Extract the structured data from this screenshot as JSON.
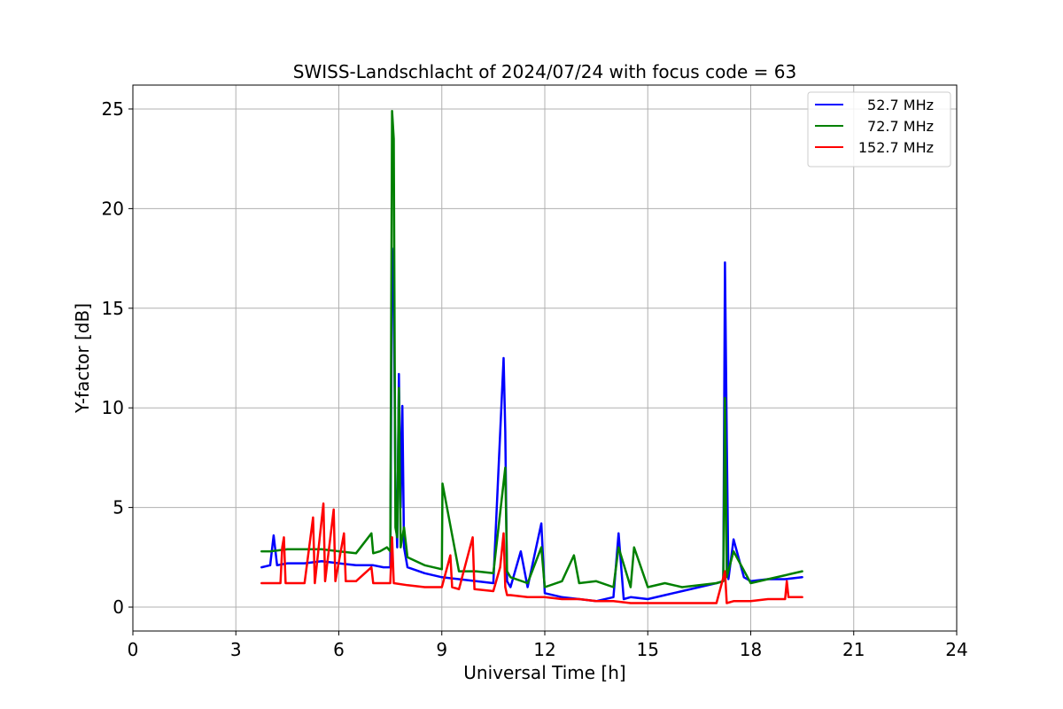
{
  "chart_data": {
    "type": "line",
    "title": "SWISS-Landschlacht of 2024/07/24 with focus code = 63",
    "xlabel": "Universal Time [h]",
    "ylabel": "Y-factor [dB]",
    "xlim": [
      0,
      24
    ],
    "ylim": [
      -1.2,
      26.2
    ],
    "xticks": [
      0,
      3,
      6,
      9,
      12,
      15,
      18,
      21,
      24
    ],
    "yticks": [
      0,
      5,
      10,
      15,
      20,
      25
    ],
    "grid": true,
    "legend_position": "top-right",
    "series": [
      {
        "name": "52.7 MHz",
        "color": "#0000ff",
        "x": [
          3.75,
          4.0,
          4.1,
          4.2,
          4.5,
          5.0,
          5.5,
          6.0,
          6.5,
          7.0,
          7.3,
          7.5,
          7.55,
          7.6,
          7.65,
          7.7,
          7.75,
          7.8,
          7.85,
          7.9,
          8.0,
          8.5,
          9.0,
          9.5,
          10.0,
          10.5,
          10.8,
          10.85,
          10.9,
          11.0,
          11.3,
          11.5,
          11.9,
          12.0,
          12.5,
          13.0,
          13.5,
          14.0,
          14.15,
          14.3,
          14.5,
          15.0,
          15.5,
          16.0,
          16.5,
          17.0,
          17.2,
          17.25,
          17.3,
          17.35,
          17.5,
          17.8,
          18.0,
          18.5,
          19.0,
          19.5
        ],
        "y": [
          2.0,
          2.1,
          3.6,
          2.1,
          2.2,
          2.2,
          2.3,
          2.2,
          2.1,
          2.1,
          2.0,
          2.0,
          18.0,
          16.2,
          6.0,
          3.0,
          11.7,
          5.0,
          10.1,
          3.0,
          2.0,
          1.7,
          1.5,
          1.4,
          1.3,
          1.2,
          12.5,
          8.8,
          1.3,
          1.0,
          2.8,
          1.0,
          4.2,
          0.7,
          0.5,
          0.4,
          0.3,
          0.5,
          3.7,
          0.4,
          0.5,
          0.4,
          0.6,
          0.8,
          1.0,
          1.2,
          1.3,
          17.3,
          8.5,
          1.4,
          3.4,
          1.5,
          1.3,
          1.4,
          1.4,
          1.5
        ]
      },
      {
        "name": "72.7 MHz",
        "color": "#008000",
        "x": [
          3.75,
          4.0,
          4.5,
          5.0,
          5.5,
          6.0,
          6.5,
          6.95,
          7.0,
          7.2,
          7.4,
          7.5,
          7.55,
          7.6,
          7.65,
          7.7,
          7.75,
          7.8,
          7.9,
          8.0,
          8.5,
          9.0,
          9.02,
          9.5,
          10.0,
          10.5,
          10.85,
          10.9,
          11.0,
          11.5,
          11.9,
          12.0,
          12.5,
          12.85,
          13.0,
          13.5,
          14.0,
          14.15,
          14.5,
          14.6,
          15.0,
          15.5,
          16.0,
          16.5,
          17.0,
          17.2,
          17.25,
          17.3,
          17.5,
          18.0,
          18.5,
          19.0,
          19.5
        ],
        "y": [
          2.8,
          2.8,
          2.9,
          2.9,
          2.9,
          2.8,
          2.7,
          3.7,
          2.7,
          2.8,
          3.0,
          2.8,
          24.9,
          23.5,
          4.0,
          3.5,
          11.0,
          3.0,
          4.0,
          2.5,
          2.1,
          1.9,
          6.2,
          1.8,
          1.8,
          1.7,
          7.0,
          1.8,
          1.5,
          1.2,
          3.0,
          1.0,
          1.3,
          2.6,
          1.2,
          1.3,
          1.0,
          3.0,
          1.0,
          3.0,
          1.0,
          1.2,
          1.0,
          1.1,
          1.2,
          1.3,
          10.5,
          1.5,
          2.8,
          1.2,
          1.4,
          1.6,
          1.8
        ]
      },
      {
        "name": "152.7 MHz",
        "color": "#ff0000",
        "x": [
          3.75,
          4.0,
          4.3,
          4.35,
          4.4,
          4.45,
          4.6,
          5.0,
          5.25,
          5.3,
          5.55,
          5.6,
          5.85,
          5.9,
          6.15,
          6.2,
          6.5,
          6.95,
          7.0,
          7.5,
          7.55,
          7.6,
          8.0,
          8.5,
          9.0,
          9.25,
          9.3,
          9.5,
          9.9,
          9.95,
          10.5,
          10.7,
          10.8,
          10.85,
          10.9,
          11.0,
          11.5,
          12.0,
          12.5,
          13.0,
          13.5,
          14.0,
          14.5,
          15.0,
          15.5,
          16.0,
          16.5,
          17.0,
          17.25,
          17.3,
          17.5,
          18.0,
          18.5,
          19.0,
          19.05,
          19.1,
          19.5
        ],
        "y": [
          1.2,
          1.2,
          1.2,
          3.0,
          3.5,
          1.2,
          1.2,
          1.2,
          4.5,
          1.2,
          5.2,
          1.3,
          4.9,
          1.3,
          3.7,
          1.3,
          1.3,
          2.0,
          1.2,
          1.2,
          3.5,
          1.2,
          1.1,
          1.0,
          1.0,
          2.6,
          1.0,
          0.9,
          3.5,
          0.9,
          0.8,
          2.0,
          3.7,
          1.0,
          0.6,
          0.6,
          0.5,
          0.5,
          0.4,
          0.4,
          0.3,
          0.3,
          0.2,
          0.2,
          0.2,
          0.2,
          0.2,
          0.2,
          1.8,
          0.2,
          0.3,
          0.3,
          0.4,
          0.4,
          1.3,
          0.5,
          0.5
        ]
      }
    ]
  }
}
